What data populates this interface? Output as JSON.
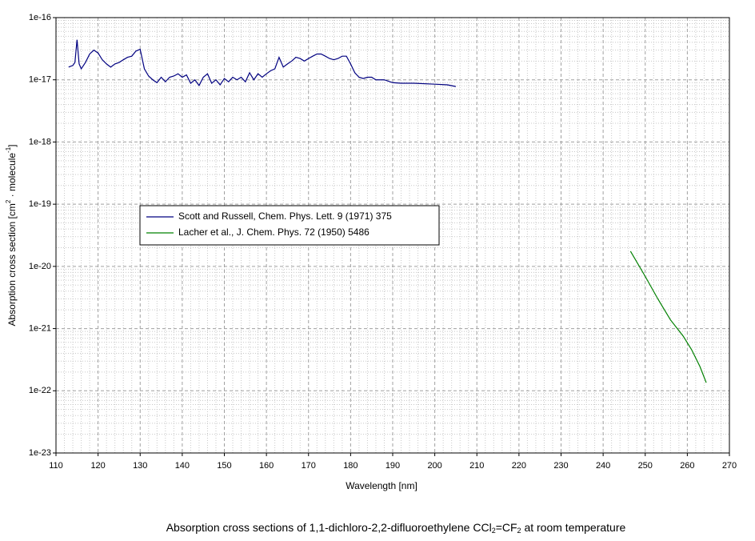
{
  "chart_data": {
    "type": "line",
    "title": [
      "Absorption cross sections of 1,1-dichloro-2,2-difluoroethylene CCl",
      "2",
      "=CF",
      "2",
      " at room temperature"
    ],
    "x_label": "Wavelength [nm]",
    "y_label": [
      "Absorption cross section [cm",
      "2",
      " · molecule",
      "-1",
      "]"
    ],
    "xlim": [
      110,
      270
    ],
    "xticks": [
      110,
      120,
      130,
      140,
      150,
      160,
      170,
      180,
      190,
      200,
      210,
      220,
      230,
      240,
      250,
      260,
      270
    ],
    "ylim": [
      1e-23,
      1e-16
    ],
    "yticks": [
      1e-23,
      1e-22,
      1e-21,
      1e-20,
      1e-19,
      1e-18,
      1e-17,
      1e-16
    ],
    "log_y": true,
    "grid": true,
    "minor_grid": true,
    "legend": "upper left",
    "series": [
      {
        "name": "Scott and Russell, Chem. Phys. Lett. 9 (1971) 375",
        "color": "#000080",
        "x": [
          113,
          114,
          114.5,
          115,
          115.5,
          116,
          117,
          118,
          119,
          120,
          121,
          122,
          123,
          124,
          125,
          126,
          127,
          128,
          129,
          130,
          131,
          132,
          133,
          134,
          135,
          136,
          137,
          138,
          139,
          140,
          141,
          142,
          143,
          144,
          145,
          146,
          147,
          148,
          149,
          150,
          151,
          152,
          153,
          154,
          155,
          156,
          157,
          158,
          159,
          160,
          161,
          162,
          163,
          164,
          165,
          166,
          167,
          168,
          169,
          170,
          171,
          172,
          173,
          174,
          175,
          176,
          177,
          178,
          179,
          180,
          181,
          182,
          183,
          184,
          185,
          186,
          188,
          190,
          192,
          195,
          200,
          203,
          205
        ],
        "values": [
          1.6e-17,
          1.7e-17,
          1.9e-17,
          4.4e-17,
          1.8e-17,
          1.5e-17,
          1.9e-17,
          2.6e-17,
          3e-17,
          2.7e-17,
          2.1e-17,
          1.8e-17,
          1.6e-17,
          1.8e-17,
          1.9e-17,
          2.1e-17,
          2.3e-17,
          2.4e-17,
          2.9e-17,
          3.1e-17,
          1.5e-17,
          1.15e-17,
          1e-17,
          9e-18,
          1.1e-17,
          9.3e-18,
          1.1e-17,
          1.15e-17,
          1.25e-17,
          1.1e-17,
          1.2e-17,
          8.8e-18,
          1e-17,
          8.1e-18,
          1.1e-17,
          1.25e-17,
          8.8e-18,
          1e-17,
          8.3e-18,
          1.05e-17,
          9.3e-18,
          1.1e-17,
          1e-17,
          1.1e-17,
          9.3e-18,
          1.3e-17,
          1e-17,
          1.25e-17,
          1.1e-17,
          1.25e-17,
          1.4e-17,
          1.5e-17,
          2.3e-17,
          1.6e-17,
          1.8e-17,
          2e-17,
          2.3e-17,
          2.2e-17,
          2e-17,
          2.2e-17,
          2.4e-17,
          2.6e-17,
          2.6e-17,
          2.4e-17,
          2.2e-17,
          2.1e-17,
          2.2e-17,
          2.4e-17,
          2.4e-17,
          1.8e-17,
          1.3e-17,
          1.1e-17,
          1.05e-17,
          1.1e-17,
          1.1e-17,
          1e-17,
          1e-17,
          9e-18,
          8.8e-18,
          8.8e-18,
          8.5e-18,
          8.3e-18,
          7.8e-18
        ]
      },
      {
        "name": "Lacher et al., J. Chem. Phys. 72 (1950) 5486",
        "color": "#008000",
        "x": [
          246.5,
          250,
          253,
          256,
          259,
          261,
          263,
          264.5
        ],
        "values": [
          1.75e-20,
          6.9e-21,
          3e-21,
          1.38e-21,
          7.6e-22,
          4.6e-22,
          2.45e-22,
          1.35e-22
        ]
      }
    ]
  }
}
